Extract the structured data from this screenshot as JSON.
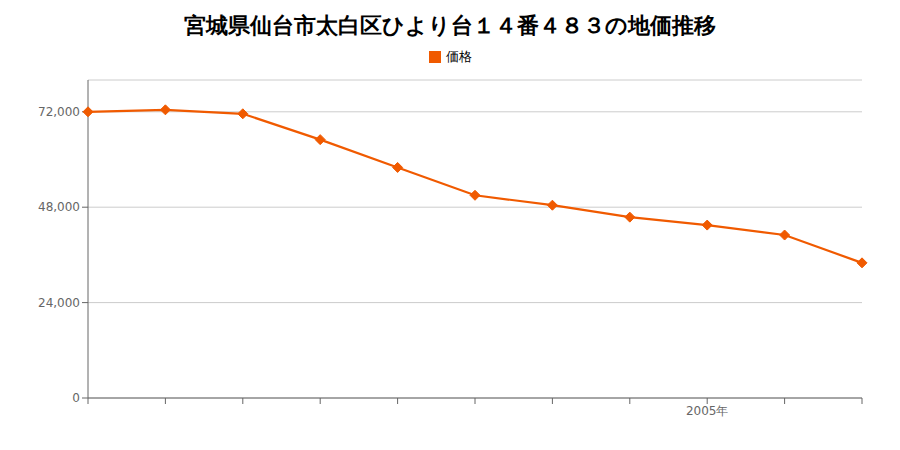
{
  "chart_data": {
    "type": "line",
    "title": "宮城県仙台市太白区ひより台１４番４８３の地価推移",
    "categories": [
      null,
      null,
      null,
      null,
      null,
      null,
      null,
      null,
      "2005年",
      null,
      null
    ],
    "series": [
      {
        "name": "価格",
        "color": "#f05a00",
        "marker": "diamond",
        "values": [
          72000,
          72500,
          71500,
          65000,
          58000,
          51000,
          48500,
          45500,
          43500,
          41000,
          34000
        ]
      }
    ],
    "ylim": [
      0,
      80000
    ],
    "yticks": [
      0,
      {
        "value": 24000,
        "label": "24,000"
      },
      {
        "value": 48000,
        "label": "48,000"
      },
      {
        "value": 72000,
        "label": "72,000"
      }
    ],
    "grid": true,
    "legend": "top"
  }
}
